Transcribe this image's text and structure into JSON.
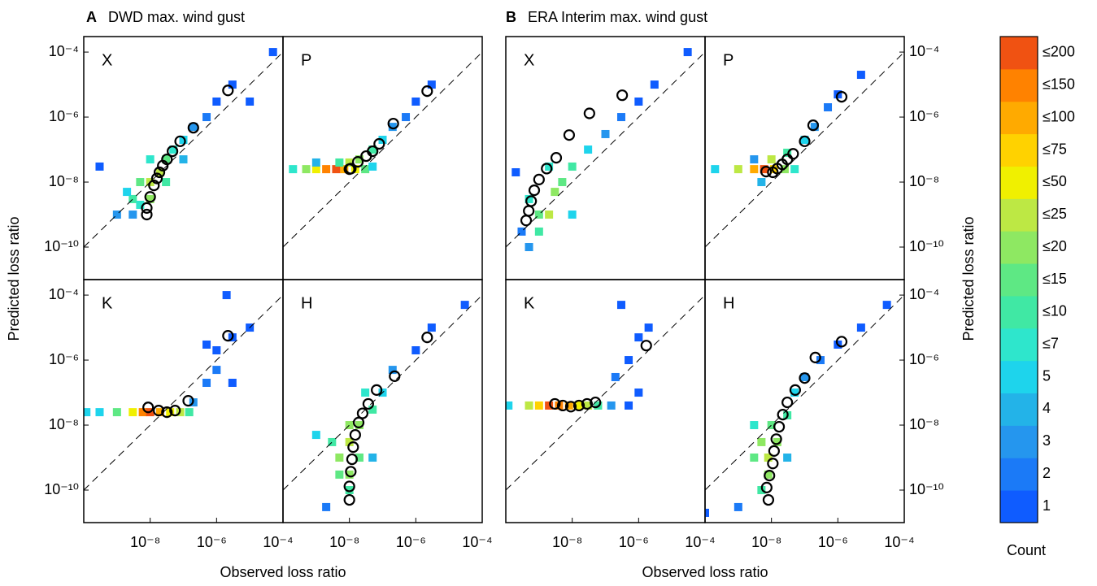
{
  "figure": {
    "titles": [
      {
        "letter": "A",
        "text": "DWD max. wind gust"
      },
      {
        "letter": "B",
        "text": "ERA Interim max. wind gust"
      }
    ],
    "xlabel": "Observed loss ratio",
    "ylabel": "Predicted loss ratio",
    "colorbar": {
      "title": "Count",
      "ticks": [
        1,
        2,
        3,
        4,
        5,
        {
          "value": 7,
          "label": "≤7"
        },
        {
          "value": 10,
          "label": "≤10"
        },
        {
          "value": 15,
          "label": "≤15"
        },
        {
          "value": 20,
          "label": "≤20"
        },
        {
          "value": 25,
          "label": "≤25"
        },
        {
          "value": 50,
          "label": "≤50"
        },
        {
          "value": 75,
          "label": "≤75"
        },
        {
          "value": 100,
          "label": "≤100"
        },
        {
          "value": 150,
          "label": "≤150"
        },
        {
          "value": 200,
          "label": "≤200"
        }
      ],
      "colors": [
        "#0f5cff",
        "#1b7af7",
        "#2596ee",
        "#23b3e8",
        "#1ed4ec",
        "#2ee6cc",
        "#40e8a4",
        "#5ee884",
        "#8ee862",
        "#bde844",
        "#f0f000",
        "#ffd200",
        "#ffaa00",
        "#ff8200",
        "#f05212"
      ]
    }
  },
  "chart_data": [
    {
      "type": "hist2d",
      "label": "X",
      "xscale": "log",
      "yscale": "log",
      "xlim": [
        1e-10,
        0.0001
      ],
      "ylim": [
        1e-11,
        0.0003
      ],
      "yaxis_side": "left",
      "yticks": [
        {
          "value": 0.0001,
          "label": "10⁻⁴"
        },
        {
          "value": 1e-06,
          "label": "10⁻⁶"
        },
        {
          "value": 1e-08,
          "label": "10⁻⁸"
        },
        {
          "value": 1e-10,
          "label": "10⁻¹⁰"
        }
      ],
      "cells": [
        [
          1e-09,
          1e-09,
          3
        ],
        [
          3e-09,
          3e-09,
          10
        ],
        [
          5e-09,
          2e-09,
          7
        ],
        [
          1e-08,
          1e-08,
          25
        ],
        [
          1e-08,
          3e-09,
          20
        ],
        [
          2e-08,
          2e-08,
          25
        ],
        [
          5e-09,
          1e-08,
          15
        ],
        [
          3e-08,
          5e-08,
          15
        ],
        [
          5e-08,
          1e-07,
          7
        ],
        [
          1e-07,
          2e-07,
          5
        ],
        [
          2e-07,
          5e-07,
          3
        ],
        [
          5e-07,
          1e-06,
          2
        ],
        [
          1e-06,
          3e-06,
          1
        ],
        [
          3e-06,
          1e-05,
          1
        ],
        [
          1e-05,
          3e-06,
          1
        ],
        [
          2e-09,
          5e-09,
          5
        ],
        [
          3e-08,
          1e-08,
          10
        ],
        [
          1e-08,
          5e-08,
          7
        ],
        [
          3e-09,
          1e-09,
          3
        ],
        [
          1e-07,
          5e-08,
          4
        ],
        [
          3e-10,
          3e-08,
          1
        ],
        [
          5e-05,
          0.0001,
          1
        ]
      ],
      "points": {
        "x": [
          2.2e-06,
          2e-07,
          8e-08,
          4.7e-08,
          3.2e-08,
          2.4e-08,
          1.9e-08,
          1.6e-08,
          1.3e-08,
          1e-08,
          7.9e-09,
          7.9e-09
        ],
        "y": [
          6.6e-06,
          4.7e-07,
          1.8e-07,
          8.9e-08,
          5e-08,
          3.2e-08,
          2e-08,
          1.3e-08,
          7.9e-09,
          3.5e-09,
          1.6e-09,
          1e-09
        ]
      }
    },
    {
      "type": "hist2d",
      "label": "P",
      "xscale": "log",
      "yscale": "log",
      "xlim": [
        1e-10,
        0.0001
      ],
      "ylim": [
        1e-11,
        0.0003
      ],
      "cells": [
        [
          2e-10,
          2.5e-08,
          7
        ],
        [
          5e-10,
          2.5e-08,
          20
        ],
        [
          1e-09,
          2.5e-08,
          50
        ],
        [
          2e-09,
          2.5e-08,
          150
        ],
        [
          4e-09,
          2.5e-08,
          200
        ],
        [
          7e-09,
          2.5e-08,
          100
        ],
        [
          1.5e-08,
          2.5e-08,
          50
        ],
        [
          3e-08,
          2.5e-08,
          15
        ],
        [
          5e-09,
          4e-08,
          10
        ],
        [
          2e-08,
          5e-08,
          20
        ],
        [
          5e-08,
          1e-07,
          10
        ],
        [
          1e-07,
          2e-07,
          5
        ],
        [
          2e-07,
          5e-07,
          3
        ],
        [
          5e-07,
          1e-06,
          2
        ],
        [
          1e-06,
          3e-06,
          1
        ],
        [
          3e-06,
          1e-05,
          1
        ],
        [
          1e-08,
          4e-08,
          25
        ],
        [
          1e-09,
          4e-08,
          4
        ],
        [
          5e-08,
          3e-08,
          5
        ]
      ],
      "points": {
        "x": [
          1e-08,
          1.1e-08,
          1.8e-08,
          3.2e-08,
          5e-08,
          7.9e-08,
          2.1e-07,
          2.2e-06
        ],
        "y": [
          2.5e-08,
          2.6e-08,
          4.2e-08,
          6.3e-08,
          8.9e-08,
          1.5e-07,
          6.3e-07,
          6.3e-06
        ]
      }
    },
    {
      "type": "hist2d",
      "label": "K",
      "xscale": "log",
      "yscale": "log",
      "xlim": [
        1e-10,
        0.0001
      ],
      "ylim": [
        1e-11,
        0.0003
      ],
      "yaxis_side": "left",
      "xticks": [
        {
          "value": 1e-08,
          "label": "10⁻⁸"
        },
        {
          "value": 1e-06,
          "label": "10⁻⁶"
        },
        {
          "value": 0.0001,
          "label": "10⁻⁴"
        }
      ],
      "yticks": [
        {
          "value": 0.0001,
          "label": "10⁻⁴"
        },
        {
          "value": 1e-06,
          "label": "10⁻⁶"
        },
        {
          "value": 1e-08,
          "label": "10⁻⁸"
        },
        {
          "value": 1e-10,
          "label": "10⁻¹⁰"
        }
      ],
      "cells": [
        [
          1.2e-10,
          2.5e-08,
          5
        ],
        [
          3e-10,
          2.5e-08,
          5
        ],
        [
          1e-09,
          2.5e-08,
          15
        ],
        [
          3e-09,
          2.5e-08,
          50
        ],
        [
          6e-09,
          2.5e-08,
          150
        ],
        [
          1e-08,
          2.5e-08,
          200
        ],
        [
          2e-08,
          2.5e-08,
          100
        ],
        [
          4e-08,
          2.5e-08,
          50
        ],
        [
          8e-08,
          2.5e-08,
          25
        ],
        [
          1.5e-07,
          2.5e-08,
          10
        ],
        [
          2e-07,
          5e-08,
          3
        ],
        [
          5e-07,
          2e-07,
          2
        ],
        [
          1e-06,
          5e-07,
          2
        ],
        [
          1e-06,
          2e-06,
          1
        ],
        [
          3e-06,
          5e-06,
          1
        ],
        [
          5e-07,
          3e-06,
          1
        ],
        [
          1e-05,
          1e-05,
          1
        ],
        [
          3e-06,
          2e-07,
          1
        ],
        [
          2e-06,
          0.0001,
          1
        ]
      ],
      "points": {
        "x": [
          8.7e-09,
          1.8e-08,
          3.2e-08,
          5.6e-08,
          1.4e-07,
          2.2e-06
        ],
        "y": [
          3.5e-08,
          2.8e-08,
          2.5e-08,
          2.8e-08,
          5.6e-08,
          5.6e-06
        ]
      }
    },
    {
      "type": "hist2d",
      "label": "H",
      "xscale": "log",
      "yscale": "log",
      "xlim": [
        1e-10,
        0.0001
      ],
      "ylim": [
        1e-11,
        0.0003
      ],
      "xticks": [
        {
          "value": 1e-08,
          "label": "10⁻⁸"
        },
        {
          "value": 1e-06,
          "label": "10⁻⁶"
        },
        {
          "value": 0.0001,
          "label": "10⁻⁴"
        }
      ],
      "cells": [
        [
          1e-08,
          1e-10,
          10
        ],
        [
          5e-09,
          3e-10,
          15
        ],
        [
          1e-08,
          3e-10,
          20
        ],
        [
          2e-08,
          1e-09,
          15
        ],
        [
          5e-09,
          1e-09,
          20
        ],
        [
          1e-08,
          3e-09,
          25
        ],
        [
          3e-09,
          3e-09,
          10
        ],
        [
          2e-08,
          1e-08,
          20
        ],
        [
          1e-08,
          1e-08,
          20
        ],
        [
          5e-08,
          3e-08,
          10
        ],
        [
          3e-08,
          1e-07,
          7
        ],
        [
          1e-07,
          1e-07,
          5
        ],
        [
          2e-07,
          5e-07,
          3
        ],
        [
          1e-06,
          2e-06,
          1
        ],
        [
          3e-06,
          1e-05,
          1
        ],
        [
          3e-05,
          5e-05,
          1
        ],
        [
          2e-09,
          3e-11,
          2
        ],
        [
          5e-08,
          1e-09,
          4
        ],
        [
          1e-09,
          5e-09,
          5
        ]
      ],
      "points": {
        "x": [
          1e-08,
          1e-08,
          1.1e-08,
          1.2e-08,
          1.3e-08,
          1.5e-08,
          1.9e-08,
          2.5e-08,
          3.7e-08,
          6.6e-08,
          2.3e-07,
          2.2e-06
        ],
        "y": [
          5e-11,
          1.3e-10,
          3.7e-10,
          8.9e-10,
          2.1e-09,
          5e-09,
          1.2e-08,
          2.3e-08,
          4.5e-08,
          1.2e-07,
          3.2e-07,
          5e-06
        ]
      }
    },
    {
      "type": "hist2d",
      "label": "X",
      "xscale": "log",
      "yscale": "log",
      "xlim": [
        1e-10,
        0.0001
      ],
      "ylim": [
        1e-11,
        0.0003
      ],
      "cells": [
        [
          1e-09,
          1e-09,
          15
        ],
        [
          2e-09,
          1e-09,
          25
        ],
        [
          1e-09,
          3e-10,
          10
        ],
        [
          3e-09,
          5e-09,
          20
        ],
        [
          5e-10,
          3e-09,
          7
        ],
        [
          5e-09,
          1e-08,
          15
        ],
        [
          1e-08,
          3e-08,
          10
        ],
        [
          3e-08,
          1e-07,
          5
        ],
        [
          1e-07,
          3e-07,
          3
        ],
        [
          3e-07,
          1e-06,
          2
        ],
        [
          1e-06,
          3e-06,
          1
        ],
        [
          3e-06,
          1e-05,
          1
        ],
        [
          5e-10,
          1e-10,
          3
        ],
        [
          3e-10,
          3e-10,
          2
        ],
        [
          1e-08,
          1e-09,
          5
        ],
        [
          2e-09,
          3e-08,
          7
        ],
        [
          3e-05,
          0.0001,
          1
        ],
        [
          2e-10,
          2e-08,
          1
        ]
      ],
      "points": {
        "x": [
          4.1e-10,
          4.9e-10,
          5.8e-10,
          7.2e-10,
          1e-09,
          1.7e-09,
          3.3e-09,
          8.1e-09,
          3.3e-08,
          3.2e-07
        ],
        "y": [
          6.6e-10,
          1.3e-09,
          2.6e-09,
          5.6e-09,
          1.2e-08,
          2.6e-08,
          5.6e-08,
          2.8e-07,
          1.3e-06,
          4.7e-06
        ]
      }
    },
    {
      "type": "hist2d",
      "label": "P",
      "xscale": "log",
      "yscale": "log",
      "xlim": [
        1e-10,
        0.0001
      ],
      "ylim": [
        1e-11,
        0.0003
      ],
      "yaxis_side": "right",
      "yticks": [
        {
          "value": 0.0001,
          "label": "10⁻⁴"
        },
        {
          "value": 1e-06,
          "label": "10⁻⁶"
        },
        {
          "value": 1e-08,
          "label": "10⁻⁸"
        },
        {
          "value": 1e-10,
          "label": "10⁻¹⁰"
        }
      ],
      "cells": [
        [
          2e-10,
          2.5e-08,
          5
        ],
        [
          1e-09,
          2.5e-08,
          25
        ],
        [
          3e-09,
          2.5e-08,
          100
        ],
        [
          6e-09,
          2.5e-08,
          200
        ],
        [
          1.2e-08,
          2.5e-08,
          75
        ],
        [
          2.5e-08,
          2.5e-08,
          20
        ],
        [
          5e-08,
          2.5e-08,
          7
        ],
        [
          1e-08,
          5e-08,
          25
        ],
        [
          3e-08,
          8e-08,
          10
        ],
        [
          1e-07,
          2e-07,
          5
        ],
        [
          2e-07,
          5e-07,
          3
        ],
        [
          5e-07,
          2e-06,
          2
        ],
        [
          1e-06,
          5e-06,
          1
        ],
        [
          5e-06,
          2e-05,
          1
        ],
        [
          5e-09,
          1e-08,
          4
        ],
        [
          3e-09,
          5e-08,
          3
        ]
      ],
      "points": {
        "x": [
          6.9e-09,
          1.1e-08,
          1.5e-08,
          2.1e-08,
          3e-08,
          4.5e-08,
          1e-07,
          1.8e-07,
          1.3e-06
        ],
        "y": [
          2.1e-08,
          2e-08,
          2.6e-08,
          3.5e-08,
          5e-08,
          7.4e-08,
          1.8e-07,
          5.6e-07,
          4.2e-06
        ]
      }
    },
    {
      "type": "hist2d",
      "label": "K",
      "xscale": "log",
      "yscale": "log",
      "xlim": [
        1e-10,
        0.0001
      ],
      "ylim": [
        1e-11,
        0.0003
      ],
      "xticks": [
        {
          "value": 1e-08,
          "label": "10⁻⁸"
        },
        {
          "value": 1e-06,
          "label": "10⁻⁶"
        },
        {
          "value": 0.0001,
          "label": "10⁻⁴"
        }
      ],
      "cells": [
        [
          1.2e-10,
          4e-08,
          5
        ],
        [
          5e-10,
          4e-08,
          25
        ],
        [
          1e-09,
          4e-08,
          75
        ],
        [
          2e-09,
          4e-08,
          200
        ],
        [
          4e-09,
          4e-08,
          150
        ],
        [
          8e-09,
          4e-08,
          100
        ],
        [
          1.5e-08,
          4e-08,
          50
        ],
        [
          3e-08,
          4e-08,
          25
        ],
        [
          6e-08,
          4e-08,
          10
        ],
        [
          1.5e-07,
          4e-08,
          3
        ],
        [
          5e-07,
          4e-08,
          1
        ],
        [
          2e-07,
          3e-07,
          2
        ],
        [
          5e-07,
          1e-06,
          1
        ],
        [
          1e-06,
          5e-06,
          1
        ],
        [
          2e-06,
          1e-05,
          1
        ],
        [
          3e-07,
          5e-05,
          1
        ],
        [
          1e-06,
          1e-07,
          1
        ]
      ],
      "points": {
        "x": [
          3e-09,
          5.2e-09,
          9.1e-09,
          1.6e-08,
          2.8e-08,
          5e-08,
          1.7e-06
        ],
        "y": [
          4.5e-08,
          4e-08,
          3.7e-08,
          4e-08,
          4.5e-08,
          5e-08,
          2.8e-06
        ]
      }
    },
    {
      "type": "hist2d",
      "label": "H",
      "xscale": "log",
      "yscale": "log",
      "xlim": [
        1e-10,
        0.0001
      ],
      "ylim": [
        1e-11,
        0.0003
      ],
      "yaxis_side": "right",
      "xticks": [
        {
          "value": 1e-08,
          "label": "10⁻⁸"
        },
        {
          "value": 1e-06,
          "label": "10⁻⁶"
        },
        {
          "value": 0.0001,
          "label": "10⁻⁴"
        }
      ],
      "yticks": [
        {
          "value": 0.0001,
          "label": "10⁻⁴"
        },
        {
          "value": 1e-06,
          "label": "10⁻⁶"
        },
        {
          "value": 1e-08,
          "label": "10⁻⁸"
        },
        {
          "value": 1e-10,
          "label": "10⁻¹⁰"
        }
      ],
      "cells": [
        [
          5e-09,
          1e-10,
          10
        ],
        [
          8e-09,
          3e-10,
          20
        ],
        [
          3e-09,
          1e-09,
          15
        ],
        [
          8e-09,
          1e-09,
          25
        ],
        [
          1.5e-08,
          3e-09,
          20
        ],
        [
          5e-09,
          3e-09,
          20
        ],
        [
          1e-08,
          1e-08,
          15
        ],
        [
          3e-08,
          2e-08,
          10
        ],
        [
          3e-09,
          1e-08,
          7
        ],
        [
          5e-08,
          1e-07,
          5
        ],
        [
          1e-07,
          3e-07,
          3
        ],
        [
          3e-07,
          1e-06,
          2
        ],
        [
          1e-06,
          3e-06,
          1
        ],
        [
          5e-06,
          1e-05,
          1
        ],
        [
          3e-05,
          5e-05,
          1
        ],
        [
          1e-09,
          3e-11,
          2
        ],
        [
          1e-10,
          2e-11,
          1
        ],
        [
          3e-08,
          1e-09,
          4
        ]
      ],
      "points": {
        "x": [
          8.1e-09,
          7.2e-09,
          8.7e-09,
          1.1e-08,
          1.2e-08,
          1.4e-08,
          1.7e-08,
          2.2e-08,
          3e-08,
          5.2e-08,
          1e-07,
          2.1e-07,
          1.3e-06
        ],
        "y": [
          5e-11,
          1.2e-10,
          2.8e-10,
          6.6e-10,
          1.6e-09,
          3.7e-09,
          8.9e-09,
          2.1e-08,
          5e-08,
          1.2e-07,
          2.8e-07,
          1.2e-06,
          3.7e-06
        ]
      }
    }
  ]
}
